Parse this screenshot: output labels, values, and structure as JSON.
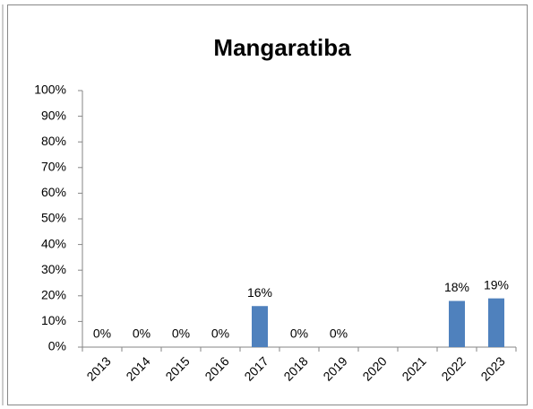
{
  "chart_data": {
    "type": "bar",
    "title": "Mangaratiba",
    "categories": [
      "2013",
      "2014",
      "2015",
      "2016",
      "2017",
      "2018",
      "2019",
      "2020",
      "2021",
      "2022",
      "2023"
    ],
    "values": [
      0,
      0,
      0,
      0,
      16,
      0,
      0,
      null,
      null,
      18,
      19
    ],
    "value_labels": [
      "0%",
      "0%",
      "0%",
      "0%",
      "16%",
      "0%",
      "0%",
      null,
      null,
      "18%",
      "19%"
    ],
    "color": "#4f81bd",
    "ylim": [
      0,
      100
    ],
    "yticks": [
      {
        "value": 0,
        "label": "0%"
      },
      {
        "value": 10,
        "label": "10%"
      },
      {
        "value": 20,
        "label": "20%"
      },
      {
        "value": 30,
        "label": "30%"
      },
      {
        "value": 40,
        "label": "40%"
      },
      {
        "value": 50,
        "label": "50%"
      },
      {
        "value": 60,
        "label": "60%"
      },
      {
        "value": 70,
        "label": "70%"
      },
      {
        "value": 80,
        "label": "80%"
      },
      {
        "value": 90,
        "label": "90%"
      },
      {
        "value": 100,
        "label": "100%"
      }
    ],
    "grid": false
  }
}
